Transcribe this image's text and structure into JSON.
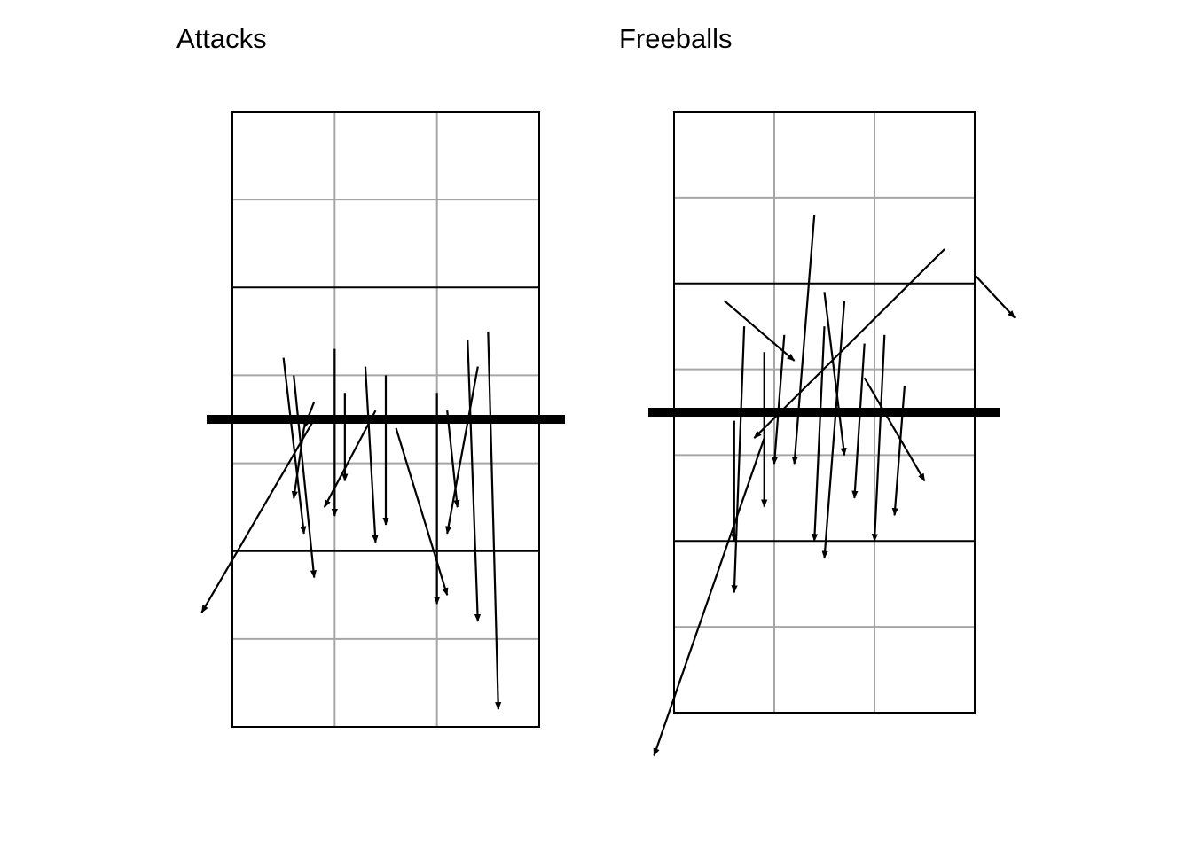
{
  "colors": {
    "background": "#ffffff",
    "court_line": "#000000",
    "grid_line": "#a6a6a6",
    "net": "#000000",
    "arrow": "#000000"
  },
  "chart_data": [
    {
      "type": "arrow-map",
      "title": "Attacks",
      "xlim": [
        0.5,
        3.5
      ],
      "ylim": [
        0,
        7
      ],
      "grid": true,
      "arrows": [
        {
          "x1": 1.0,
          "y1": 4.2,
          "x2": 1.2,
          "y2": 2.2
        },
        {
          "x1": 1.1,
          "y1": 4.0,
          "x2": 1.3,
          "y2": 1.7
        },
        {
          "x1": 1.2,
          "y1": 3.4,
          "x2": 1.1,
          "y2": 2.6
        },
        {
          "x1": 1.3,
          "y1": 3.7,
          "x2": 1.2,
          "y2": 3.4
        },
        {
          "x1": 1.5,
          "y1": 4.3,
          "x2": 1.5,
          "y2": 2.4
        },
        {
          "x1": 1.6,
          "y1": 3.8,
          "x2": 1.6,
          "y2": 2.8
        },
        {
          "x1": 1.3,
          "y1": 3.5,
          "x2": 0.2,
          "y2": 1.3
        },
        {
          "x1": 1.8,
          "y1": 4.1,
          "x2": 1.9,
          "y2": 2.1
        },
        {
          "x1": 2.0,
          "y1": 4.0,
          "x2": 2.0,
          "y2": 2.3
        },
        {
          "x1": 2.1,
          "y1": 3.4,
          "x2": 2.6,
          "y2": 1.5
        },
        {
          "x1": 1.9,
          "y1": 3.6,
          "x2": 1.4,
          "y2": 2.5
        },
        {
          "x1": 2.5,
          "y1": 3.8,
          "x2": 2.5,
          "y2": 1.4
        },
        {
          "x1": 2.8,
          "y1": 4.4,
          "x2": 2.9,
          "y2": 1.2
        },
        {
          "x1": 3.0,
          "y1": 4.5,
          "x2": 3.1,
          "y2": 0.2
        },
        {
          "x1": 2.6,
          "y1": 3.6,
          "x2": 2.7,
          "y2": 2.5
        },
        {
          "x1": 2.9,
          "y1": 4.1,
          "x2": 2.6,
          "y2": 2.2
        }
      ]
    },
    {
      "type": "arrow-map",
      "title": "Freeballs",
      "xlim": [
        0.5,
        3.5
      ],
      "ylim": [
        0,
        7
      ],
      "grid": true,
      "arrows": [
        {
          "x1": 1.2,
          "y1": 4.5,
          "x2": 1.1,
          "y2": 1.4
        },
        {
          "x1": 1.4,
          "y1": 4.2,
          "x2": 1.4,
          "y2": 2.4
        },
        {
          "x1": 1.6,
          "y1": 4.4,
          "x2": 1.5,
          "y2": 2.9
        },
        {
          "x1": 2.0,
          "y1": 4.5,
          "x2": 1.9,
          "y2": 2.0
        },
        {
          "x1": 2.2,
          "y1": 4.8,
          "x2": 2.0,
          "y2": 1.8
        },
        {
          "x1": 2.4,
          "y1": 4.3,
          "x2": 2.3,
          "y2": 2.5
        },
        {
          "x1": 1.9,
          "y1": 5.8,
          "x2": 1.7,
          "y2": 2.9
        },
        {
          "x1": 1.0,
          "y1": 4.8,
          "x2": 1.7,
          "y2": 4.1
        },
        {
          "x1": 2.0,
          "y1": 4.9,
          "x2": 2.2,
          "y2": 3.0
        },
        {
          "x1": 3.2,
          "y1": 5.4,
          "x2": 1.3,
          "y2": 3.2
        },
        {
          "x1": 3.5,
          "y1": 5.1,
          "x2": 3.9,
          "y2": 4.6
        },
        {
          "x1": 1.4,
          "y1": 3.2,
          "x2": 0.3,
          "y2": -0.5
        },
        {
          "x1": 2.8,
          "y1": 3.8,
          "x2": 2.7,
          "y2": 2.3
        },
        {
          "x1": 2.6,
          "y1": 4.4,
          "x2": 2.5,
          "y2": 2.0
        },
        {
          "x1": 1.1,
          "y1": 3.4,
          "x2": 1.1,
          "y2": 2.0
        },
        {
          "x1": 2.4,
          "y1": 3.9,
          "x2": 3.0,
          "y2": 2.7
        }
      ]
    }
  ]
}
